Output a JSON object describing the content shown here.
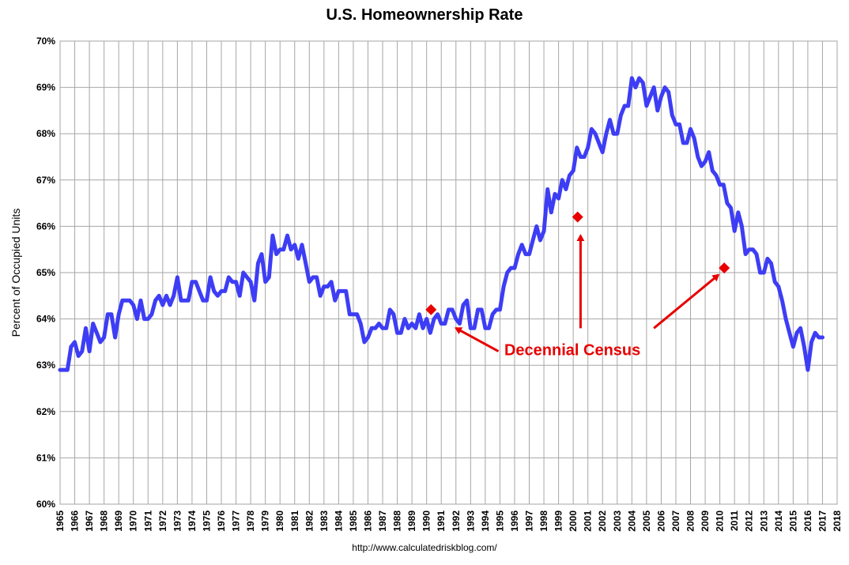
{
  "chart_data": {
    "type": "line",
    "title": "U.S. Homeownership Rate",
    "ylabel": "Percent of Occupied Units",
    "xlabel": "",
    "source": "http://www.calculatedriskblog.com/",
    "ylim": [
      60,
      70
    ],
    "xlim": [
      1965,
      2018
    ],
    "y_ticks": [
      "60%",
      "61%",
      "62%",
      "63%",
      "64%",
      "65%",
      "66%",
      "67%",
      "68%",
      "69%",
      "70%"
    ],
    "x_ticks": [
      "1965",
      "1966",
      "1967",
      "1968",
      "1969",
      "1970",
      "1971",
      "1972",
      "1973",
      "1974",
      "1975",
      "1976",
      "1977",
      "1978",
      "1979",
      "1980",
      "1981",
      "1982",
      "1983",
      "1984",
      "1985",
      "1986",
      "1987",
      "1988",
      "1989",
      "1990",
      "1991",
      "1992",
      "1993",
      "1994",
      "1995",
      "1996",
      "1997",
      "1998",
      "1999",
      "2000",
      "2001",
      "2002",
      "2003",
      "2004",
      "2005",
      "2006",
      "2007",
      "2008",
      "2009",
      "2010",
      "2011",
      "2012",
      "2013",
      "2014",
      "2015",
      "2016",
      "2017",
      "2018"
    ],
    "grid": true,
    "series": [
      {
        "color": "#3d3df5",
        "points": [
          [
            1965.0,
            62.9
          ],
          [
            1965.5,
            62.9
          ],
          [
            1965.75,
            63.4
          ],
          [
            1966.0,
            63.5
          ],
          [
            1966.25,
            63.2
          ],
          [
            1966.5,
            63.3
          ],
          [
            1966.75,
            63.8
          ],
          [
            1967.0,
            63.3
          ],
          [
            1967.25,
            63.9
          ],
          [
            1967.5,
            63.7
          ],
          [
            1967.75,
            63.5
          ],
          [
            1968.0,
            63.6
          ],
          [
            1968.25,
            64.1
          ],
          [
            1968.5,
            64.1
          ],
          [
            1968.75,
            63.6
          ],
          [
            1969.0,
            64.1
          ],
          [
            1969.25,
            64.4
          ],
          [
            1969.5,
            64.4
          ],
          [
            1969.75,
            64.4
          ],
          [
            1970.0,
            64.3
          ],
          [
            1970.25,
            64.0
          ],
          [
            1970.5,
            64.4
          ],
          [
            1970.75,
            64.0
          ],
          [
            1971.0,
            64.0
          ],
          [
            1971.25,
            64.1
          ],
          [
            1971.5,
            64.4
          ],
          [
            1971.75,
            64.5
          ],
          [
            1972.0,
            64.3
          ],
          [
            1972.25,
            64.5
          ],
          [
            1972.5,
            64.3
          ],
          [
            1972.75,
            64.5
          ],
          [
            1973.0,
            64.9
          ],
          [
            1973.25,
            64.4
          ],
          [
            1973.5,
            64.4
          ],
          [
            1973.75,
            64.4
          ],
          [
            1974.0,
            64.8
          ],
          [
            1974.25,
            64.8
          ],
          [
            1974.5,
            64.6
          ],
          [
            1974.75,
            64.4
          ],
          [
            1975.0,
            64.4
          ],
          [
            1975.25,
            64.9
          ],
          [
            1975.5,
            64.6
          ],
          [
            1975.75,
            64.5
          ],
          [
            1976.0,
            64.6
          ],
          [
            1976.25,
            64.6
          ],
          [
            1976.5,
            64.9
          ],
          [
            1976.75,
            64.8
          ],
          [
            1977.0,
            64.8
          ],
          [
            1977.25,
            64.5
          ],
          [
            1977.5,
            65.0
          ],
          [
            1977.75,
            64.9
          ],
          [
            1978.0,
            64.8
          ],
          [
            1978.25,
            64.4
          ],
          [
            1978.5,
            65.2
          ],
          [
            1978.75,
            65.4
          ],
          [
            1979.0,
            64.8
          ],
          [
            1979.25,
            64.9
          ],
          [
            1979.5,
            65.8
          ],
          [
            1979.75,
            65.4
          ],
          [
            1980.0,
            65.5
          ],
          [
            1980.25,
            65.5
          ],
          [
            1980.5,
            65.8
          ],
          [
            1980.75,
            65.5
          ],
          [
            1981.0,
            65.6
          ],
          [
            1981.25,
            65.3
          ],
          [
            1981.5,
            65.6
          ],
          [
            1981.75,
            65.2
          ],
          [
            1982.0,
            64.8
          ],
          [
            1982.25,
            64.9
          ],
          [
            1982.5,
            64.9
          ],
          [
            1982.75,
            64.5
          ],
          [
            1983.0,
            64.7
          ],
          [
            1983.25,
            64.7
          ],
          [
            1983.5,
            64.8
          ],
          [
            1983.75,
            64.4
          ],
          [
            1984.0,
            64.6
          ],
          [
            1984.25,
            64.6
          ],
          [
            1984.5,
            64.6
          ],
          [
            1984.75,
            64.1
          ],
          [
            1985.0,
            64.1
          ],
          [
            1985.25,
            64.1
          ],
          [
            1985.5,
            63.9
          ],
          [
            1985.75,
            63.5
          ],
          [
            1986.0,
            63.6
          ],
          [
            1986.25,
            63.8
          ],
          [
            1986.5,
            63.8
          ],
          [
            1986.75,
            63.9
          ],
          [
            1987.0,
            63.8
          ],
          [
            1987.25,
            63.8
          ],
          [
            1987.5,
            64.2
          ],
          [
            1987.75,
            64.1
          ],
          [
            1988.0,
            63.7
          ],
          [
            1988.25,
            63.7
          ],
          [
            1988.5,
            64.0
          ],
          [
            1988.75,
            63.8
          ],
          [
            1989.0,
            63.9
          ],
          [
            1989.25,
            63.8
          ],
          [
            1989.5,
            64.1
          ],
          [
            1989.75,
            63.8
          ],
          [
            1990.0,
            64.0
          ],
          [
            1990.25,
            63.7
          ],
          [
            1990.5,
            64.0
          ],
          [
            1990.75,
            64.1
          ],
          [
            1991.0,
            63.9
          ],
          [
            1991.25,
            63.9
          ],
          [
            1991.5,
            64.2
          ],
          [
            1991.75,
            64.2
          ],
          [
            1992.0,
            64.0
          ],
          [
            1992.25,
            63.9
          ],
          [
            1992.5,
            64.3
          ],
          [
            1992.75,
            64.4
          ],
          [
            1993.0,
            63.8
          ],
          [
            1993.25,
            63.8
          ],
          [
            1993.5,
            64.2
          ],
          [
            1993.75,
            64.2
          ],
          [
            1994.0,
            63.8
          ],
          [
            1994.25,
            63.8
          ],
          [
            1994.5,
            64.1
          ],
          [
            1994.75,
            64.2
          ],
          [
            1995.0,
            64.2
          ],
          [
            1995.25,
            64.7
          ],
          [
            1995.5,
            65.0
          ],
          [
            1995.75,
            65.1
          ],
          [
            1996.0,
            65.1
          ],
          [
            1996.25,
            65.4
          ],
          [
            1996.5,
            65.6
          ],
          [
            1996.75,
            65.4
          ],
          [
            1997.0,
            65.4
          ],
          [
            1997.25,
            65.7
          ],
          [
            1997.5,
            66.0
          ],
          [
            1997.75,
            65.7
          ],
          [
            1998.0,
            65.9
          ],
          [
            1998.25,
            66.8
          ],
          [
            1998.5,
            66.3
          ],
          [
            1998.75,
            66.7
          ],
          [
            1999.0,
            66.6
          ],
          [
            1999.25,
            67.0
          ],
          [
            1999.5,
            66.8
          ],
          [
            1999.75,
            67.1
          ],
          [
            2000.0,
            67.2
          ],
          [
            2000.25,
            67.7
          ],
          [
            2000.5,
            67.5
          ],
          [
            2000.75,
            67.5
          ],
          [
            2001.0,
            67.7
          ],
          [
            2001.25,
            68.1
          ],
          [
            2001.5,
            68.0
          ],
          [
            2001.75,
            67.8
          ],
          [
            2002.0,
            67.6
          ],
          [
            2002.25,
            68.0
          ],
          [
            2002.5,
            68.3
          ],
          [
            2002.75,
            68.0
          ],
          [
            2003.0,
            68.0
          ],
          [
            2003.25,
            68.4
          ],
          [
            2003.5,
            68.6
          ],
          [
            2003.75,
            68.6
          ],
          [
            2004.0,
            69.2
          ],
          [
            2004.25,
            69.0
          ],
          [
            2004.5,
            69.2
          ],
          [
            2004.75,
            69.1
          ],
          [
            2005.0,
            68.6
          ],
          [
            2005.25,
            68.8
          ],
          [
            2005.5,
            69.0
          ],
          [
            2005.75,
            68.5
          ],
          [
            2006.0,
            68.8
          ],
          [
            2006.25,
            69.0
          ],
          [
            2006.5,
            68.9
          ],
          [
            2006.75,
            68.4
          ],
          [
            2007.0,
            68.2
          ],
          [
            2007.25,
            68.2
          ],
          [
            2007.5,
            67.8
          ],
          [
            2007.75,
            67.8
          ],
          [
            2008.0,
            68.1
          ],
          [
            2008.25,
            67.9
          ],
          [
            2008.5,
            67.5
          ],
          [
            2008.75,
            67.3
          ],
          [
            2009.0,
            67.4
          ],
          [
            2009.25,
            67.6
          ],
          [
            2009.5,
            67.2
          ],
          [
            2009.75,
            67.1
          ],
          [
            2010.0,
            66.9
          ],
          [
            2010.25,
            66.9
          ],
          [
            2010.5,
            66.5
          ],
          [
            2010.75,
            66.4
          ],
          [
            2011.0,
            65.9
          ],
          [
            2011.25,
            66.3
          ],
          [
            2011.5,
            66.0
          ],
          [
            2011.75,
            65.4
          ],
          [
            2012.0,
            65.5
          ],
          [
            2012.25,
            65.5
          ],
          [
            2012.5,
            65.4
          ],
          [
            2012.75,
            65.0
          ],
          [
            2013.0,
            65.0
          ],
          [
            2013.25,
            65.3
          ],
          [
            2013.5,
            65.2
          ],
          [
            2013.75,
            64.8
          ],
          [
            2014.0,
            64.7
          ],
          [
            2014.25,
            64.4
          ],
          [
            2014.5,
            64.0
          ],
          [
            2014.75,
            63.7
          ],
          [
            2015.0,
            63.4
          ],
          [
            2015.25,
            63.7
          ],
          [
            2015.5,
            63.8
          ],
          [
            2015.75,
            63.4
          ],
          [
            2016.0,
            62.9
          ],
          [
            2016.25,
            63.5
          ],
          [
            2016.5,
            63.7
          ],
          [
            2016.75,
            63.6
          ],
          [
            2017.0,
            63.6
          ]
        ]
      }
    ],
    "markers": {
      "color": "#e80000",
      "shape": "diamond",
      "points": [
        [
          1990.3,
          64.2
        ],
        [
          2000.3,
          66.2
        ],
        [
          2010.3,
          65.1
        ]
      ]
    },
    "annotations": [
      {
        "text": "Decennial Census",
        "color": "#e80000",
        "arrows": [
          {
            "from": [
              1994.9,
              63.3
            ],
            "to": [
              1992.0,
              63.8
            ]
          },
          {
            "from": [
              2000.5,
              63.8
            ],
            "to": [
              2000.5,
              65.8
            ]
          },
          {
            "from": [
              2005.5,
              63.8
            ],
            "to": [
              2009.9,
              64.95
            ]
          }
        ]
      }
    ]
  }
}
